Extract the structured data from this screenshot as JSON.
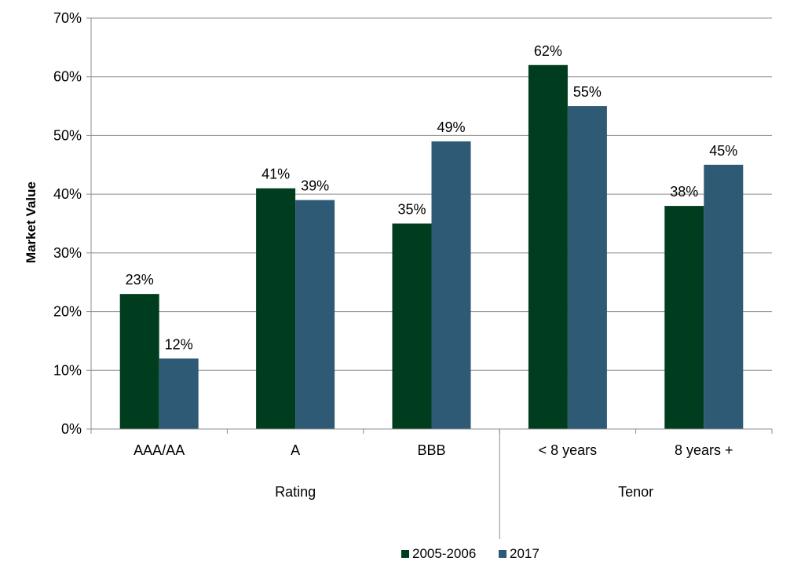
{
  "chart_data": {
    "type": "bar",
    "ylabel": "Market Value",
    "xlabel": "",
    "ylim": [
      0,
      70
    ],
    "yticks": [
      "0%",
      "10%",
      "20%",
      "30%",
      "40%",
      "50%",
      "60%",
      "70%"
    ],
    "grid": true,
    "legend_position": "bottom",
    "categories": [
      "AAA/AA",
      "A",
      "BBB",
      "< 8 years",
      "8 years +"
    ],
    "groups": [
      {
        "label": "Rating",
        "categories": [
          "AAA/AA",
          "A",
          "BBB"
        ]
      },
      {
        "label": "Tenor",
        "categories": [
          "< 8 years",
          "8 years +"
        ]
      }
    ],
    "series": [
      {
        "name": "2005-2006",
        "color": "#003d1e",
        "values": [
          23,
          41,
          35,
          62,
          38
        ],
        "labels": [
          "23%",
          "41%",
          "35%",
          "62%",
          "38%"
        ]
      },
      {
        "name": "2017",
        "color": "#2e5a75",
        "values": [
          12,
          39,
          49,
          55,
          45
        ],
        "labels": [
          "12%",
          "39%",
          "49%",
          "55%",
          "45%"
        ]
      }
    ]
  }
}
